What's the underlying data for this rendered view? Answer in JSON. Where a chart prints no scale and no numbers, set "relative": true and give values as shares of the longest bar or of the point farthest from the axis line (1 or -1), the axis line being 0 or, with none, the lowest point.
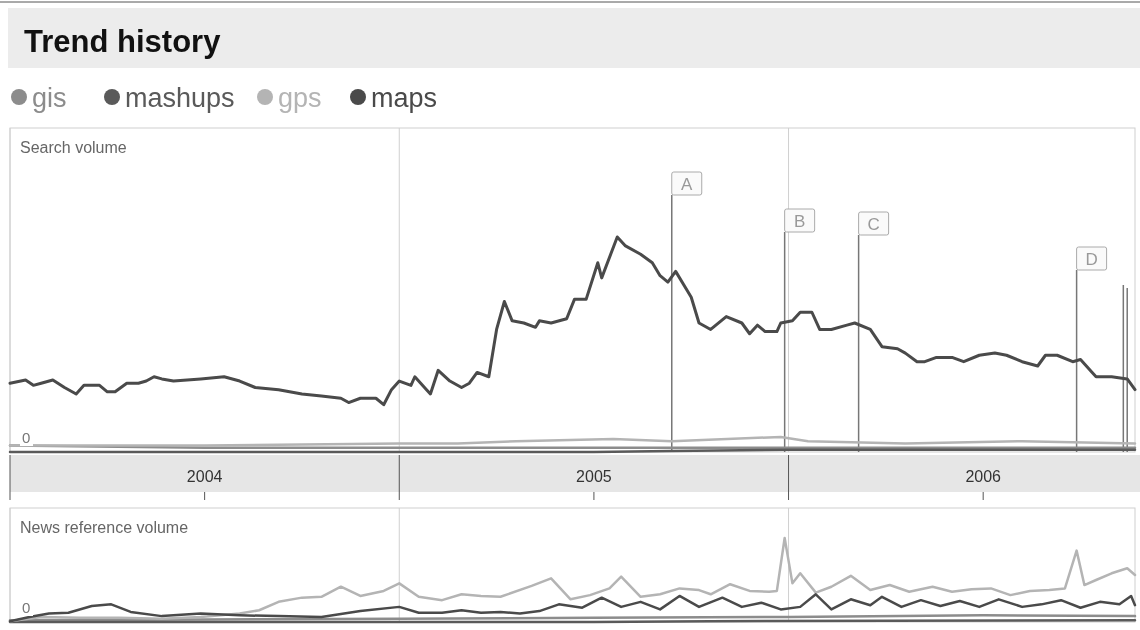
{
  "chart_data": [
    {
      "type": "line",
      "title": "Trend history",
      "ylabel": "Search volume",
      "relative": true,
      "legend": "top left",
      "grid": "x",
      "tick_labels": "x",
      "line_style": "solid",
      "marker": "none",
      "xlim": [
        2004,
        2006.89
      ],
      "xticks": [
        {
          "value": 2004,
          "label": null
        },
        {
          "value": 2004.5,
          "label": "2004"
        },
        {
          "value": 2005,
          "label": null
        },
        {
          "value": 2005.5,
          "label": "2005"
        },
        {
          "value": 2006,
          "label": null
        },
        {
          "value": 2006.5,
          "label": "2006"
        }
      ],
      "annotations": [
        {
          "text": "0",
          "x": 2004,
          "y": 0
        }
      ],
      "ref_lines": [
        {
          "axis": "x",
          "value": 2005.7,
          "label": "A"
        },
        {
          "axis": "x",
          "value": 2005.99,
          "label": "B"
        },
        {
          "axis": "x",
          "value": 2006.18,
          "label": "C"
        },
        {
          "axis": "x",
          "value": 2006.74,
          "label": "D"
        },
        {
          "axis": "x",
          "value": 2006.86
        },
        {
          "axis": "x",
          "value": 2006.87
        }
      ],
      "series": [
        {
          "name": "gis",
          "color": "#8c8c8c",
          "x": [
            2004,
            2004.5,
            2005,
            2005.5,
            2006,
            2006.89
          ],
          "values": [
            0.03,
            0.02,
            0.02,
            0.02,
            0.02,
            0.02
          ]
        },
        {
          "name": "mashups",
          "color": "#5a5a5a",
          "x": [
            2004,
            2005.5,
            2005.7,
            2006,
            2006.89
          ],
          "values": [
            0,
            0,
            0.005,
            0.01,
            0.01
          ]
        },
        {
          "name": "gps",
          "color": "#b4b4b4",
          "x": [
            2004,
            2004.5,
            2005,
            2005.15,
            2005.3,
            2005.55,
            2005.7,
            2005.98,
            2006.05,
            2006.3,
            2006.6,
            2006.89
          ],
          "values": [
            0.03,
            0.03,
            0.04,
            0.04,
            0.05,
            0.06,
            0.05,
            0.07,
            0.05,
            0.04,
            0.05,
            0.04
          ]
        },
        {
          "name": "maps",
          "color": "#4a4a4a",
          "x": [
            2004,
            2004.04,
            2004.06,
            2004.08,
            2004.11,
            2004.14,
            2004.17,
            2004.19,
            2004.23,
            2004.25,
            2004.27,
            2004.3,
            2004.33,
            2004.35,
            2004.37,
            2004.39,
            2004.42,
            2004.49,
            2004.55,
            2004.59,
            2004.63,
            2004.69,
            2004.75,
            2004.8,
            2004.85,
            2004.87,
            2004.9,
            2004.94,
            2004.96,
            2004.98,
            2005,
            2005.03,
            2005.04,
            2005.07,
            2005.08,
            2005.1,
            2005.13,
            2005.16,
            2005.18,
            2005.2,
            2005.23,
            2005.25,
            2005.27,
            2005.29,
            2005.32,
            2005.35,
            2005.36,
            2005.39,
            2005.43,
            2005.45,
            2005.48,
            2005.51,
            2005.52,
            2005.56,
            2005.58,
            2005.62,
            2005.65,
            2005.67,
            2005.69,
            2005.71,
            2005.74,
            2005.75,
            2005.77,
            2005.8,
            2005.84,
            2005.88,
            2005.9,
            2005.92,
            2005.94,
            2005.97,
            2005.98,
            2006.01,
            2006.03,
            2006.06,
            2006.08,
            2006.11,
            2006.15,
            2006.17,
            2006.21,
            2006.24,
            2006.28,
            2006.3,
            2006.33,
            2006.35,
            2006.38,
            2006.42,
            2006.45,
            2006.49,
            2006.53,
            2006.56,
            2006.6,
            2006.64,
            2006.66,
            2006.69,
            2006.73,
            2006.75,
            2006.78,
            2006.79,
            2006.83,
            2006.87,
            2006.89
          ],
          "values": [
            0.32,
            0.335,
            0.31,
            0.32,
            0.335,
            0.3,
            0.27,
            0.31,
            0.31,
            0.28,
            0.28,
            0.32,
            0.32,
            0.33,
            0.35,
            0.34,
            0.33,
            0.34,
            0.35,
            0.33,
            0.3,
            0.29,
            0.27,
            0.26,
            0.25,
            0.23,
            0.25,
            0.25,
            0.22,
            0.29,
            0.33,
            0.31,
            0.35,
            0.29,
            0.27,
            0.38,
            0.33,
            0.3,
            0.32,
            0.37,
            0.35,
            0.57,
            0.7,
            0.61,
            0.6,
            0.58,
            0.61,
            0.6,
            0.62,
            0.71,
            0.71,
            0.88,
            0.81,
            1,
            0.96,
            0.92,
            0.88,
            0.82,
            0.79,
            0.84,
            0.75,
            0.72,
            0.6,
            0.57,
            0.63,
            0.6,
            0.55,
            0.59,
            0.56,
            0.56,
            0.6,
            0.61,
            0.65,
            0.65,
            0.57,
            0.57,
            0.59,
            0.6,
            0.57,
            0.49,
            0.48,
            0.46,
            0.42,
            0.42,
            0.44,
            0.44,
            0.42,
            0.45,
            0.46,
            0.45,
            0.42,
            0.4,
            0.45,
            0.45,
            0.42,
            0.43,
            0.37,
            0.35,
            0.35,
            0.34,
            0.29
          ]
        }
      ]
    },
    {
      "type": "line",
      "ylabel": "News reference volume",
      "relative": true,
      "grid": "x",
      "tick_labels": false,
      "line_style": "solid",
      "marker": "none",
      "xlim": [
        2004,
        2006.89
      ],
      "xticks": [
        {
          "value": 2004,
          "label": null
        },
        {
          "value": 2005,
          "label": null
        },
        {
          "value": 2006,
          "label": null
        }
      ],
      "annotations": [
        {
          "text": "0",
          "x": 2004,
          "y": 0
        }
      ],
      "series": [
        {
          "color": "#8c8c8c",
          "x": [
            2004,
            2004.5,
            2005,
            2005.5,
            2006,
            2006.5,
            2006.89
          ],
          "values": [
            0.02,
            0.03,
            0.04,
            0.05,
            0.06,
            0.08,
            0.07
          ]
        },
        {
          "color": "#5a5a5a",
          "x": [
            2004,
            2005.5,
            2005.8,
            2006.89
          ],
          "values": [
            0,
            0,
            0.01,
            0.02
          ]
        },
        {
          "color": "#b4b4b4",
          "x": [
            2004,
            2004.08,
            2004.18,
            2004.28,
            2004.39,
            2004.49,
            2004.59,
            2004.64,
            2004.69,
            2004.75,
            2004.8,
            2004.85,
            2004.9,
            2004.96,
            2005,
            2005.05,
            2005.11,
            2005.16,
            2005.21,
            2005.26,
            2005.34,
            2005.39,
            2005.44,
            2005.49,
            2005.54,
            2005.57,
            2005.62,
            2005.67,
            2005.72,
            2005.77,
            2005.8,
            2005.85,
            2005.9,
            2005.95,
            2005.97,
            2005.99,
            2006.01,
            2006.03,
            2006.07,
            2006.11,
            2006.16,
            2006.21,
            2006.26,
            2006.31,
            2006.37,
            2006.42,
            2006.47,
            2006.52,
            2006.57,
            2006.62,
            2006.67,
            2006.71,
            2006.74,
            2006.76,
            2006.79,
            2006.83,
            2006.87,
            2006.89
          ],
          "values": [
            0.01,
            0.06,
            0.05,
            0.05,
            0.04,
            0.06,
            0.1,
            0.14,
            0.24,
            0.29,
            0.3,
            0.42,
            0.31,
            0.37,
            0.46,
            0.3,
            0.26,
            0.33,
            0.31,
            0.3,
            0.43,
            0.52,
            0.27,
            0.32,
            0.4,
            0.54,
            0.3,
            0.33,
            0.4,
            0.38,
            0.33,
            0.45,
            0.37,
            0.36,
            0.37,
            1,
            0.46,
            0.58,
            0.35,
            0.42,
            0.55,
            0.38,
            0.44,
            0.36,
            0.42,
            0.36,
            0.39,
            0.4,
            0.32,
            0.37,
            0.38,
            0.4,
            0.85,
            0.44,
            0.5,
            0.58,
            0.64,
            0.56
          ]
        },
        {
          "color": "#4a4a4a",
          "x": [
            2004,
            2004.05,
            2004.1,
            2004.15,
            2004.21,
            2004.26,
            2004.31,
            2004.39,
            2004.49,
            2004.59,
            2004.69,
            2004.8,
            2004.9,
            2005,
            2005.05,
            2005.11,
            2005.16,
            2005.21,
            2005.26,
            2005.31,
            2005.36,
            2005.41,
            2005.47,
            2005.52,
            2005.57,
            2005.62,
            2005.67,
            2005.72,
            2005.77,
            2005.83,
            2005.88,
            2005.93,
            2005.98,
            2006.03,
            2006.07,
            2006.11,
            2006.16,
            2006.21,
            2006.24,
            2006.29,
            2006.34,
            2006.39,
            2006.44,
            2006.49,
            2006.54,
            2006.6,
            2006.65,
            2006.7,
            2006.75,
            2006.8,
            2006.85,
            2006.88,
            2006.89
          ],
          "values": [
            0.01,
            0.06,
            0.1,
            0.11,
            0.19,
            0.21,
            0.12,
            0.07,
            0.1,
            0.08,
            0.07,
            0.06,
            0.13,
            0.18,
            0.11,
            0.11,
            0.14,
            0.11,
            0.12,
            0.1,
            0.13,
            0.21,
            0.17,
            0.29,
            0.18,
            0.24,
            0.15,
            0.31,
            0.18,
            0.29,
            0.18,
            0.23,
            0.15,
            0.18,
            0.33,
            0.15,
            0.27,
            0.2,
            0.3,
            0.18,
            0.26,
            0.19,
            0.25,
            0.18,
            0.27,
            0.18,
            0.21,
            0.26,
            0.17,
            0.24,
            0.21,
            0.31,
            0.2
          ]
        }
      ]
    }
  ]
}
